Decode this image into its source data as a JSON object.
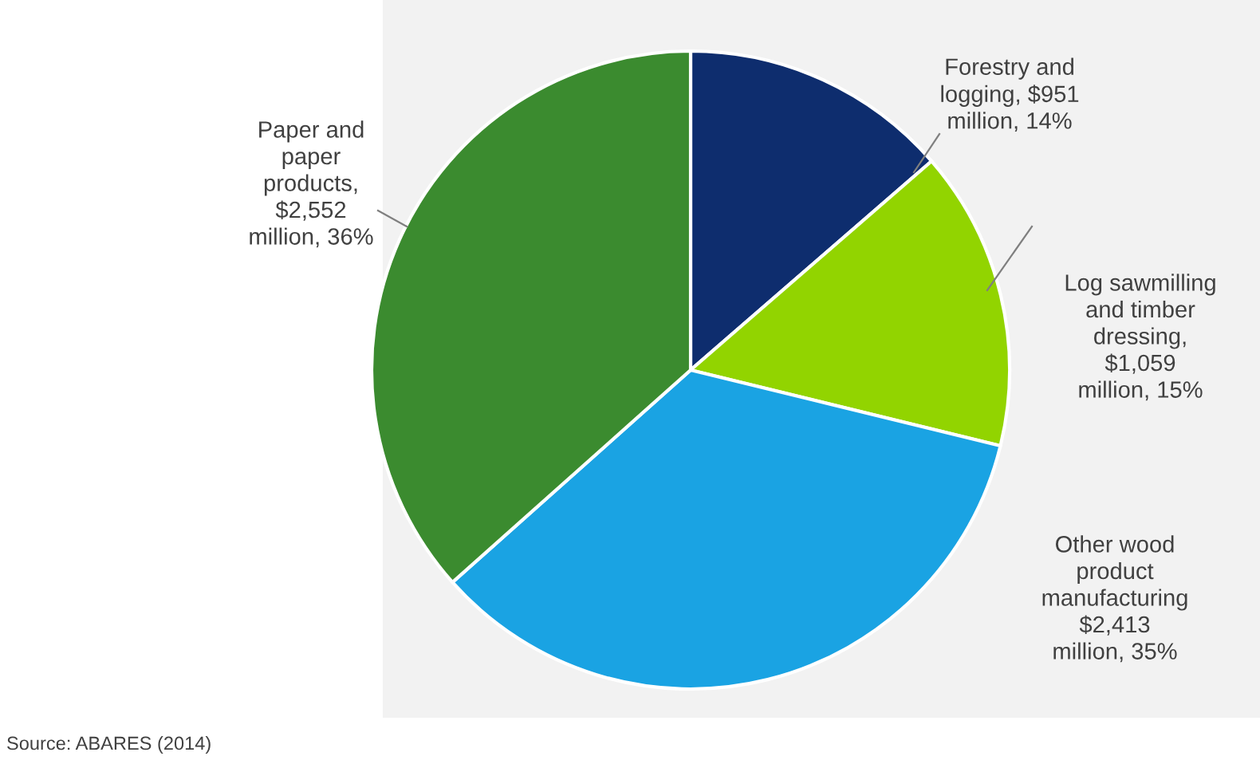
{
  "chart_data": {
    "type": "pie",
    "categories": [
      "Forestry and\nlogging",
      "Log sawmilling\nand timber\ndressing",
      "Other wood\nproduct\nmanufacturing",
      "Paper and\npaper\nproducts"
    ],
    "values": [
      951,
      1059,
      2413,
      2552
    ],
    "value_labels": [
      ", $951\nmillion, 14%",
      ",\n$1,059\nmillion, 15%",
      "$2,413\nmillion, 35%",
      ",\n$2,552\nmillion, 36%"
    ],
    "colors": [
      "#0e2d6e",
      "#92d400",
      "#1aa3e3",
      "#3b8b2f"
    ],
    "legend": false,
    "annotations": [
      "Source: ABARES (2014)"
    ]
  }
}
